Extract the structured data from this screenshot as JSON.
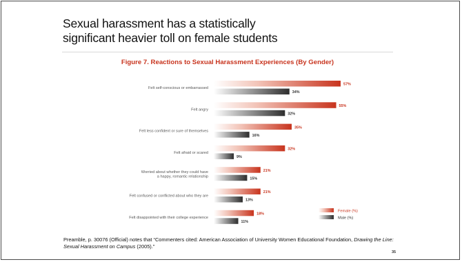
{
  "slide": {
    "title_line1": "Sexual harassment has a statistically",
    "title_line2": "significant heavier toll on female students",
    "figure_title": "Figure 7.  Reactions to Sexual Harassment Experiences (By Gender)",
    "footnote_before": "Preamble, p. 30076 (Official) notes that “Commenters cited: American Association of University Women Educational Foundation, ",
    "footnote_italic": "Drawing the Line: Sexual Harassment on Campus",
    "footnote_after": " (2005).”",
    "page_number": "35"
  },
  "colors": {
    "female": "#c8341e",
    "male": "#333333",
    "figure_title": "#c8341e"
  },
  "chart_data": {
    "type": "bar",
    "orientation": "horizontal",
    "title": "Figure 7.  Reactions to Sexual Harassment Experiences (By Gender)",
    "categories": [
      [
        "Felt self-conscious or embarrassed"
      ],
      [
        "Felt angry"
      ],
      [
        "Felt less confident or sure of themselves"
      ],
      [
        "Felt afraid or scared"
      ],
      [
        "Worried about whether they could have",
        "a happy, romantic relationship"
      ],
      [
        "Felt confused or conflicted about who they are"
      ],
      [
        "Felt disappointed with their college experience"
      ]
    ],
    "series": [
      {
        "name": "Female (%)",
        "values": [
          57,
          55,
          35,
          32,
          21,
          21,
          18
        ],
        "labels": [
          "57%",
          "55%",
          "35%",
          "32%",
          "21%",
          "21%",
          "18%"
        ]
      },
      {
        "name": "Male (%)",
        "values": [
          34,
          32,
          16,
          9,
          15,
          13,
          11
        ],
        "labels": [
          "34%",
          "32%",
          "16%",
          "9%",
          "15%",
          "13%",
          "11%"
        ]
      }
    ],
    "xlim": [
      0,
      57
    ],
    "legend_position": "bottom-right",
    "grid": false
  }
}
